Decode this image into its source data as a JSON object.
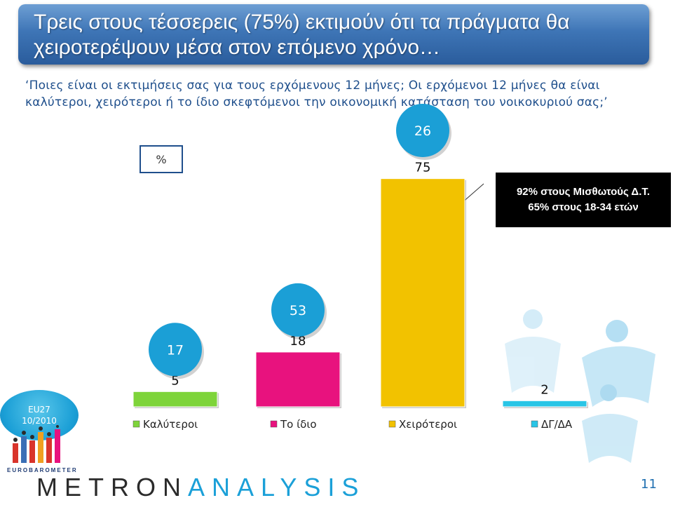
{
  "header": {
    "title_line1": "Τρεις στους τέσσερεις (75%) εκτιμούν ότι τα πράγματα θα",
    "title_line2": "χειροτερέψουν μέσα στον επόμενο χρόνο…"
  },
  "question_text": "‘Ποιες είναι οι εκτιμήσεις σας για τους ερχόμενους 12 μήνες; Οι ερχόμενοι 12 μήνες θα είναι καλύτεροι, χειρότεροι ή το ίδιο σκεφτόμενοι την οικονομική κατάσταση του νοικοκυριού σας;’",
  "unit_label": "%",
  "callout": {
    "line1": "92% στους Μισθωτούς Δ.Τ.",
    "line2": "65% στους 18-34 ετών"
  },
  "eu_badge": {
    "line1": "EU27",
    "line2": "10/2010"
  },
  "branding": {
    "eurobarometer": "EUROBAROMETER",
    "metron": "METRON",
    "analysis": "ANALYSIS"
  },
  "page_number": "11",
  "chart_data": {
    "type": "bar",
    "categories": [
      "Καλύτεροι",
      "Το ίδιο",
      "Χειρότεροι",
      "ΔΓ/ΔΑ"
    ],
    "values": [
      5,
      18,
      75,
      2
    ],
    "eu27_values": [
      17,
      53,
      26,
      null
    ],
    "ylim": [
      0,
      100
    ],
    "colors": [
      "#7ed43a",
      "#e8127e",
      "#f2c200",
      "#29c5e6"
    ],
    "bubble_color": "#1b9fd6",
    "legend_placement": "bottom",
    "grid": false
  }
}
